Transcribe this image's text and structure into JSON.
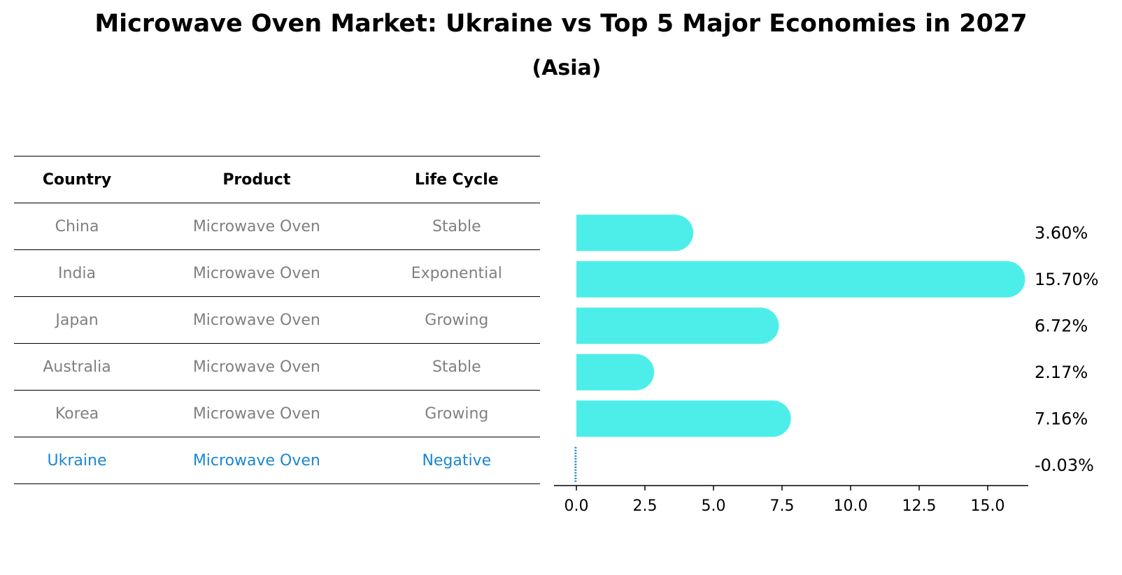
{
  "title": "Microwave Oven Market: Ukraine vs Top 5 Major Economies in 2027",
  "subtitle": "(Asia)",
  "table": {
    "headers": [
      "Country",
      "Product",
      "Life Cycle"
    ],
    "rows": [
      [
        "China",
        "Microwave Oven",
        "Stable"
      ],
      [
        "India",
        "Microwave Oven",
        "Exponential"
      ],
      [
        "Japan",
        "Microwave Oven",
        "Growing"
      ],
      [
        "Australia",
        "Microwave Oven",
        "Stable"
      ],
      [
        "Korea",
        "Microwave Oven",
        "Growing"
      ],
      [
        "Ukraine",
        "Microwave Oven",
        "Negative"
      ]
    ]
  },
  "chart_data": {
    "type": "bar",
    "orientation": "horizontal",
    "categories": [
      "China",
      "India",
      "Japan",
      "Australia",
      "Korea",
      "Ukraine"
    ],
    "values": [
      3.6,
      15.7,
      6.72,
      2.17,
      7.16,
      -0.03
    ],
    "value_labels": [
      "3.60%",
      "15.70%",
      "6.72%",
      "2.17%",
      "7.16%",
      "-0.03%"
    ],
    "xticks": [
      0.0,
      2.5,
      5.0,
      7.5,
      10.0,
      12.5,
      15.0
    ],
    "xtick_labels": [
      "0.0",
      "2.5",
      "5.0",
      "7.5",
      "10.0",
      "12.5",
      "15.0"
    ],
    "xlim": [
      -0.8,
      16.5
    ],
    "bar_color": "#4deeea",
    "highlight_color": "#1a87d0",
    "highlight_category": "Ukraine"
  }
}
